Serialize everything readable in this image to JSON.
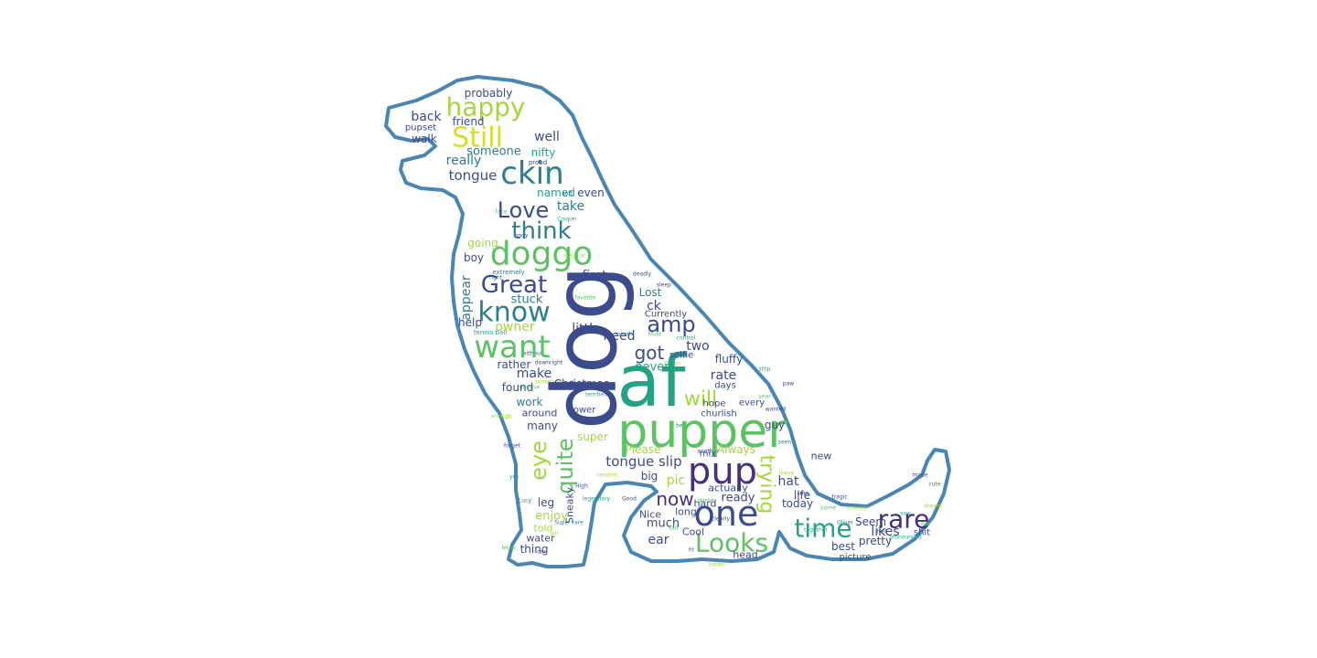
{
  "palette": [
    "#3b4b8c",
    "#2e7e8e",
    "#25a184",
    "#5cc264",
    "#a5d63e",
    "#d6dd32",
    "#472f7d",
    "#1f968b"
  ],
  "outline_color": "#4a86b4",
  "words": [
    {
      "text": "dog",
      "size": 96,
      "color": 0,
      "rot": -90
    },
    {
      "text": "af",
      "size": 78,
      "color": 2,
      "rot": 0
    },
    {
      "text": "pupper",
      "size": 52,
      "color": 3,
      "rot": 0
    },
    {
      "text": "pup",
      "size": 40,
      "color": 6,
      "rot": 0
    },
    {
      "text": "one",
      "size": 38,
      "color": 0,
      "rot": 0
    },
    {
      "text": "doggo",
      "size": 36,
      "color": 3,
      "rot": 0
    },
    {
      "text": "want",
      "size": 34,
      "color": 3,
      "rot": 0
    },
    {
      "text": "ckin",
      "size": 34,
      "color": 1,
      "rot": 0
    },
    {
      "text": "know",
      "size": 30,
      "color": 1,
      "rot": 0
    },
    {
      "text": "Still",
      "size": 30,
      "color": 5,
      "rot": 0
    },
    {
      "text": "happy",
      "size": 28,
      "color": 4,
      "rot": 0
    },
    {
      "text": "time",
      "size": 28,
      "color": 2,
      "rot": 0
    },
    {
      "text": "Looks",
      "size": 28,
      "color": 3,
      "rot": 0
    },
    {
      "text": "rare",
      "size": 28,
      "color": 6,
      "rot": 0
    },
    {
      "text": "Great",
      "size": 26,
      "color": 0,
      "rot": 0
    },
    {
      "text": "think",
      "size": 26,
      "color": 1,
      "rot": 0
    },
    {
      "text": "Love",
      "size": 24,
      "color": 0,
      "rot": 0
    },
    {
      "text": "amp",
      "size": 24,
      "color": 0,
      "rot": 0
    },
    {
      "text": "quite",
      "size": 24,
      "color": 3,
      "rot": -90
    },
    {
      "text": "eye",
      "size": 24,
      "color": 4,
      "rot": -90
    },
    {
      "text": "trying",
      "size": 22,
      "color": 4,
      "rot": 90
    },
    {
      "text": "will",
      "size": 22,
      "color": 4,
      "rot": 0
    },
    {
      "text": "now",
      "size": 20,
      "color": 6,
      "rot": 0
    },
    {
      "text": "got",
      "size": 20,
      "color": 0,
      "rot": 0
    },
    {
      "text": "tongue slip",
      "size": 15,
      "color": 0,
      "rot": 0
    },
    {
      "text": "tongue",
      "size": 15,
      "color": 0,
      "rot": 0
    },
    {
      "text": "take",
      "size": 14,
      "color": 1,
      "rot": 0
    },
    {
      "text": "really",
      "size": 14,
      "color": 1,
      "rot": 0
    },
    {
      "text": "well",
      "size": 14,
      "color": 0,
      "rot": 0
    },
    {
      "text": "back",
      "size": 14,
      "color": 0,
      "rot": 0
    },
    {
      "text": "someone",
      "size": 13,
      "color": 1,
      "rot": 0
    },
    {
      "text": "nifty",
      "size": 12,
      "color": 2,
      "rot": 0
    },
    {
      "text": "walk",
      "size": 12,
      "color": 0,
      "rot": 0
    },
    {
      "text": "friend",
      "size": 12,
      "color": 0,
      "rot": 0
    },
    {
      "text": "probably",
      "size": 12,
      "color": 0,
      "rot": 0
    },
    {
      "text": "named",
      "size": 12,
      "color": 2,
      "rot": 0
    },
    {
      "text": "even",
      "size": 12,
      "color": 0,
      "rot": 0
    },
    {
      "text": "going",
      "size": 12,
      "color": 4,
      "rot": 0
    },
    {
      "text": "first",
      "size": 14,
      "color": 0,
      "rot": 0
    },
    {
      "text": "boy",
      "size": 12,
      "color": 0,
      "rot": 0
    },
    {
      "text": "appear",
      "size": 14,
      "color": 1,
      "rot": -90
    },
    {
      "text": "stuck",
      "size": 13,
      "color": 1,
      "rot": 0
    },
    {
      "text": "help",
      "size": 12,
      "color": 0,
      "rot": 0
    },
    {
      "text": "owner",
      "size": 14,
      "color": 4,
      "rot": 0
    },
    {
      "text": "little",
      "size": 14,
      "color": 0,
      "rot": 0
    },
    {
      "text": "need",
      "size": 14,
      "color": 0,
      "rot": 0
    },
    {
      "text": "ck",
      "size": 14,
      "color": 0,
      "rot": 0
    },
    {
      "text": "Lost",
      "size": 12,
      "color": 1,
      "rot": 0
    },
    {
      "text": "Currently",
      "size": 10,
      "color": 0,
      "rot": 0
    },
    {
      "text": "make",
      "size": 14,
      "color": 0,
      "rot": 0
    },
    {
      "text": "rather",
      "size": 12,
      "color": 0,
      "rot": 0
    },
    {
      "text": "Christmas",
      "size": 12,
      "color": 0,
      "rot": 0
    },
    {
      "text": "rate",
      "size": 14,
      "color": 0,
      "rot": 0
    },
    {
      "text": "two",
      "size": 14,
      "color": 0,
      "rot": 0
    },
    {
      "text": "fluffy",
      "size": 12,
      "color": 0,
      "rot": 0
    },
    {
      "text": "never",
      "size": 13,
      "color": 2,
      "rot": 0
    },
    {
      "text": "work",
      "size": 12,
      "color": 1,
      "rot": 0
    },
    {
      "text": "found",
      "size": 12,
      "color": 0,
      "rot": 0
    },
    {
      "text": "around",
      "size": 11,
      "color": 0,
      "rot": 0
    },
    {
      "text": "many",
      "size": 12,
      "color": 0,
      "rot": 0
    },
    {
      "text": "flower",
      "size": 10,
      "color": 0,
      "rot": 0
    },
    {
      "text": "super",
      "size": 12,
      "color": 4,
      "rot": 0
    },
    {
      "text": "Please",
      "size": 12,
      "color": 4,
      "rot": 0
    },
    {
      "text": "Always",
      "size": 12,
      "color": 4,
      "rot": 0
    },
    {
      "text": "churlish",
      "size": 10,
      "color": 0,
      "rot": 0
    },
    {
      "text": "guy",
      "size": 12,
      "color": 0,
      "rot": 0
    },
    {
      "text": "hat",
      "size": 14,
      "color": 0,
      "rot": 0
    },
    {
      "text": "life",
      "size": 12,
      "color": 0,
      "rot": 0
    },
    {
      "text": "today",
      "size": 12,
      "color": 0,
      "rot": 0
    },
    {
      "text": "ready",
      "size": 13,
      "color": 0,
      "rot": 0
    },
    {
      "text": "much",
      "size": 13,
      "color": 0,
      "rot": 0
    },
    {
      "text": "big",
      "size": 12,
      "color": 0,
      "rot": 0
    },
    {
      "text": "pic",
      "size": 14,
      "color": 4,
      "rot": 0
    },
    {
      "text": "actually",
      "size": 11,
      "color": 0,
      "rot": 0
    },
    {
      "text": "hard",
      "size": 11,
      "color": 0,
      "rot": 0
    },
    {
      "text": "ear",
      "size": 14,
      "color": 0,
      "rot": 0
    },
    {
      "text": "long",
      "size": 11,
      "color": 0,
      "rot": 0
    },
    {
      "text": "Nice",
      "size": 11,
      "color": 0,
      "rot": 0
    },
    {
      "text": "Cool",
      "size": 11,
      "color": 0,
      "rot": 0
    },
    {
      "text": "likes",
      "size": 14,
      "color": 0,
      "rot": 0
    },
    {
      "text": "pretty",
      "size": 12,
      "color": 0,
      "rot": 0
    },
    {
      "text": "best",
      "size": 12,
      "color": 0,
      "rot": 0
    },
    {
      "text": "Seem",
      "size": 12,
      "color": 0,
      "rot": 0
    },
    {
      "text": "head",
      "size": 11,
      "color": 0,
      "rot": 0
    },
    {
      "text": "leg",
      "size": 12,
      "color": 0,
      "rot": 0
    },
    {
      "text": "enjoy",
      "size": 13,
      "color": 4,
      "rot": 0
    },
    {
      "text": "told",
      "size": 11,
      "color": 4,
      "rot": 0
    },
    {
      "text": "thing",
      "size": 12,
      "color": 0,
      "rot": 0
    },
    {
      "text": "water",
      "size": 11,
      "color": 0,
      "rot": 0
    },
    {
      "text": "Sneaky",
      "size": 11,
      "color": 0,
      "rot": -90
    },
    {
      "text": "pupset",
      "size": 10,
      "color": 0,
      "rot": 0
    },
    {
      "text": "mix",
      "size": 10,
      "color": 0,
      "rot": 0
    },
    {
      "text": "new",
      "size": 11,
      "color": 0,
      "rot": 0
    },
    {
      "text": "picture",
      "size": 10,
      "color": 0,
      "rot": 0
    },
    {
      "text": "shit",
      "size": 10,
      "color": 0,
      "rot": 0
    },
    {
      "text": "days",
      "size": 10,
      "color": 0,
      "rot": 0
    },
    {
      "text": "hope",
      "size": 10,
      "color": 0,
      "rot": 0
    },
    {
      "text": "every",
      "size": 10,
      "color": 0,
      "rot": 0
    },
    {
      "text": "selfie",
      "size": 10,
      "color": 0,
      "rot": 0
    }
  ],
  "filler_words": [
    "tennis ball",
    "proud",
    "feet",
    "soft",
    "Cooper",
    "magical",
    "extremely",
    "favorite",
    "without",
    "sometimes",
    "downright",
    "massive",
    "officially",
    "terrified",
    "mouth",
    "deadly",
    "Must",
    "Damn",
    "sleep",
    "control",
    "bear",
    "another",
    "game",
    "clearly",
    "exotic",
    "stop",
    "paw",
    "year",
    "wanted",
    "seen",
    "leave",
    "sure",
    "together",
    "come",
    "tragic",
    "Oliver",
    "one ear",
    "hell",
    "pronounced",
    "fun",
    "cute",
    "made",
    "dream",
    "saw",
    "body",
    "face",
    "right",
    "enough",
    "forget",
    "yes",
    "Lucy",
    "fetch",
    "car",
    "girl",
    "Super rare",
    "High",
    "legendary",
    "random",
    "Good",
    "sad",
    "fit"
  ],
  "filler_layout": [
    [
      536,
      364,
      7,
      2
    ],
    [
      588,
      178,
      7,
      0
    ],
    [
      602,
      186,
      6,
      4
    ],
    [
      620,
      212,
      6,
      0
    ],
    [
      620,
      240,
      6,
      2
    ],
    [
      628,
      280,
      6,
      4
    ],
    [
      556,
      298,
      7,
      1
    ],
    [
      640,
      326,
      6,
      3
    ],
    [
      582,
      387,
      6,
      0
    ],
    [
      601,
      418,
      6,
      4
    ],
    [
      600,
      397,
      6,
      0
    ],
    [
      578,
      424,
      6,
      3
    ],
    [
      632,
      420,
      6,
      0
    ],
    [
      652,
      432,
      6,
      2
    ],
    [
      682,
      366,
      6,
      1
    ],
    [
      702,
      300,
      6,
      0
    ],
    [
      716,
      366,
      6,
      3
    ],
    [
      735,
      398,
      6,
      4
    ],
    [
      726,
      312,
      6,
      0
    ],
    [
      750,
      370,
      6,
      2
    ],
    [
      746,
      466,
      6,
      1
    ],
    [
      774,
      494,
      6,
      0
    ],
    [
      772,
      548,
      6,
      3
    ],
    [
      788,
      568,
      6,
      0
    ],
    [
      784,
      618,
      6,
      4
    ],
    [
      836,
      404,
      6,
      2
    ],
    [
      862,
      420,
      6,
      0
    ],
    [
      836,
      434,
      6,
      3
    ],
    [
      848,
      448,
      6,
      0
    ],
    [
      858,
      484,
      6,
      1
    ],
    [
      860,
      518,
      6,
      4
    ],
    [
      878,
      540,
      6,
      0
    ],
    [
      892,
      580,
      6,
      2
    ],
    [
      906,
      556,
      6,
      3
    ],
    [
      918,
      544,
      6,
      0
    ],
    [
      924,
      572,
      6,
      1
    ],
    [
      938,
      556,
      6,
      4
    ],
    [
      964,
      582,
      6,
      0
    ],
    [
      990,
      588,
      6,
      2
    ],
    [
      1012,
      574,
      6,
      3
    ],
    [
      1022,
      530,
      6,
      1
    ],
    [
      1006,
      520,
      6,
      0
    ],
    [
      1020,
      554,
      6,
      4
    ],
    [
      990,
      562,
      6,
      2
    ],
    [
      570,
      258,
      6,
      0
    ],
    [
      548,
      232,
      6,
      3
    ],
    [
      542,
      304,
      6,
      1
    ],
    [
      548,
      456,
      6,
      4
    ],
    [
      560,
      488,
      6,
      0
    ],
    [
      562,
      522,
      6,
      2
    ],
    [
      574,
      548,
      6,
      1
    ],
    [
      556,
      600,
      6,
      3
    ],
    [
      592,
      604,
      6,
      0
    ],
    [
      606,
      584,
      6,
      4
    ],
    [
      622,
      572,
      6,
      1
    ],
    [
      636,
      532,
      6,
      0
    ],
    [
      652,
      546,
      6,
      2
    ],
    [
      664,
      520,
      6,
      4
    ],
    [
      688,
      546,
      6,
      0
    ],
    [
      736,
      578,
      6,
      3
    ],
    [
      756,
      602,
      6,
      1
    ]
  ]
}
